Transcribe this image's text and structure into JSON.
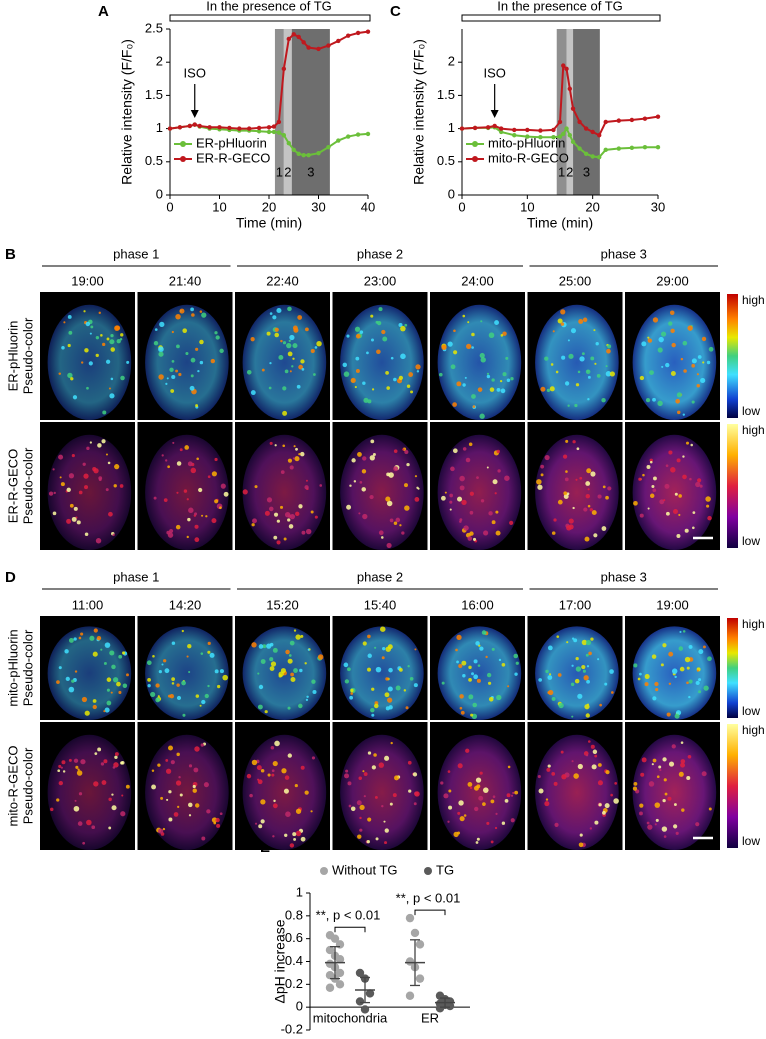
{
  "chart_data": [
    {
      "type": "line",
      "letter": "A",
      "banner": "In the presence of TG",
      "annotation": "ISO",
      "iso_x": 5,
      "xlabel": "Time (min)",
      "ylabel": "Relative intensity (F/F₀)",
      "x": [
        0,
        2,
        4,
        5,
        6,
        8,
        10,
        12,
        14,
        16,
        18,
        20,
        21,
        22,
        23,
        24,
        25,
        26,
        27,
        28,
        30,
        32,
        34,
        36,
        38,
        40
      ],
      "series": [
        {
          "name": "ER-pHluorin",
          "color": "#6bbf3a",
          "values": [
            1.0,
            1.02,
            1.04,
            1.06,
            1.03,
            1.0,
            0.99,
            0.98,
            0.97,
            0.97,
            0.96,
            0.95,
            0.95,
            0.94,
            0.9,
            0.78,
            0.68,
            0.62,
            0.6,
            0.6,
            0.63,
            0.72,
            0.82,
            0.88,
            0.91,
            0.92
          ]
        },
        {
          "name": "ER-R-GECO",
          "color": "#c0181e",
          "values": [
            1.0,
            1.02,
            1.04,
            1.06,
            1.04,
            1.02,
            1.02,
            1.01,
            1.0,
            1.0,
            1.01,
            1.02,
            1.03,
            1.1,
            1.9,
            2.35,
            2.42,
            2.38,
            2.3,
            2.22,
            2.2,
            2.25,
            2.32,
            2.4,
            2.44,
            2.46
          ]
        }
      ],
      "phases": [
        {
          "label": "1",
          "range": [
            21.2,
            23
          ]
        },
        {
          "label": "2",
          "range": [
            23,
            24.6
          ]
        },
        {
          "label": "3",
          "range": [
            24.6,
            32.3
          ]
        }
      ],
      "xlim": [
        0,
        40
      ],
      "xticks": [
        0,
        10,
        20,
        30,
        40
      ],
      "ylim": [
        0,
        2.5
      ],
      "yticks": [
        0,
        0.5,
        1,
        1.5,
        2,
        2.5
      ]
    },
    {
      "type": "line",
      "letter": "C",
      "banner": "In the presence of TG",
      "annotation": "ISO",
      "iso_x": 5,
      "xlabel": "Time (min)",
      "ylabel": "Relative intensity (F/F₀)",
      "x": [
        0,
        2,
        4,
        5,
        6,
        8,
        10,
        12,
        14,
        15,
        15.5,
        16,
        16.5,
        17,
        18,
        19,
        20,
        21,
        22,
        24,
        26,
        28,
        30
      ],
      "series": [
        {
          "name": "mito-pHluorin",
          "color": "#6bbf3a",
          "values": [
            1.0,
            1.01,
            1.01,
            1.02,
            0.95,
            0.9,
            0.88,
            0.87,
            0.87,
            0.88,
            0.92,
            1.0,
            0.9,
            0.8,
            0.7,
            0.62,
            0.58,
            0.57,
            0.68,
            0.7,
            0.71,
            0.72,
            0.72
          ]
        },
        {
          "name": "mito-R-GECO",
          "color": "#c0181e",
          "values": [
            1.0,
            1.01,
            1.02,
            1.04,
            1.0,
            0.98,
            0.98,
            0.97,
            0.98,
            1.1,
            1.95,
            1.9,
            1.6,
            1.3,
            1.1,
            1.0,
            0.95,
            0.9,
            1.1,
            1.12,
            1.13,
            1.15,
            1.18
          ]
        }
      ],
      "phases": [
        {
          "label": "1",
          "range": [
            14.5,
            16
          ]
        },
        {
          "label": "2",
          "range": [
            16,
            17
          ]
        },
        {
          "label": "3",
          "range": [
            17,
            21.1
          ]
        }
      ],
      "xlim": [
        0,
        30
      ],
      "xticks": [
        0,
        10,
        20,
        30
      ],
      "ylim": [
        0,
        2.5
      ],
      "yticks": [
        0,
        0.5,
        1,
        1.5,
        2
      ]
    },
    {
      "type": "strip",
      "letter": "E",
      "ylabel": "ΔpH increase",
      "categories": [
        "mitochondria",
        "ER"
      ],
      "series": [
        {
          "name": "Without TG",
          "color": "#a6a6a6",
          "values": [
            [
              0.63,
              0.6,
              0.55,
              0.5,
              0.45,
              0.42,
              0.38,
              0.35,
              0.3,
              0.28,
              0.25,
              0.2,
              0.17
            ],
            [
              0.78,
              0.65,
              0.55,
              0.4,
              0.35,
              0.25,
              0.1
            ]
          ],
          "mean": [
            0.39,
            0.39
          ],
          "sd": [
            0.14,
            0.2
          ]
        },
        {
          "name": "TG",
          "color": "#5a5a5a",
          "values": [
            [
              0.3,
              0.25,
              0.12,
              0.05,
              -0.02
            ],
            [
              0.1,
              0.07,
              0.05,
              0.03,
              0.02,
              0.01,
              -0.01
            ]
          ],
          "mean": [
            0.15,
            0.04
          ],
          "sd": [
            0.11,
            0.04
          ]
        }
      ],
      "annotations": [
        "**, p < 0.01",
        "**, p < 0.01"
      ],
      "ylim": [
        -0.2,
        1
      ],
      "yticks": [
        -0.2,
        0,
        0.2,
        0.4,
        0.6,
        0.8,
        1
      ]
    }
  ],
  "image_panels": [
    {
      "letter": "B",
      "phases": [
        "phase 1",
        "phase 2",
        "phase 3"
      ],
      "times": [
        "19:00",
        "21:40",
        "22:40",
        "23:00",
        "24:00",
        "25:00",
        "29:00"
      ],
      "rows": [
        {
          "label": [
            "ER-pHluorin",
            "Pseudo-color"
          ],
          "colormap": "jet",
          "high": "high",
          "low": "low"
        },
        {
          "label": [
            "ER-R-GECO",
            "Pseudo-color"
          ],
          "colormap": "fire",
          "high": "high",
          "low": "low"
        }
      ]
    },
    {
      "letter": "D",
      "phases": [
        "phase 1",
        "phase 2",
        "phase 3"
      ],
      "times": [
        "11:00",
        "14:20",
        "15:20",
        "15:40",
        "16:00",
        "17:00",
        "19:00"
      ],
      "rows": [
        {
          "label": [
            "mito-pHluorin",
            "Pseudo-color"
          ],
          "colormap": "jet",
          "high": "high",
          "low": "low"
        },
        {
          "label": [
            "mito-R-GECO",
            "Pseudo-color"
          ],
          "colormap": "fire",
          "high": "high",
          "low": "low"
        }
      ]
    }
  ]
}
